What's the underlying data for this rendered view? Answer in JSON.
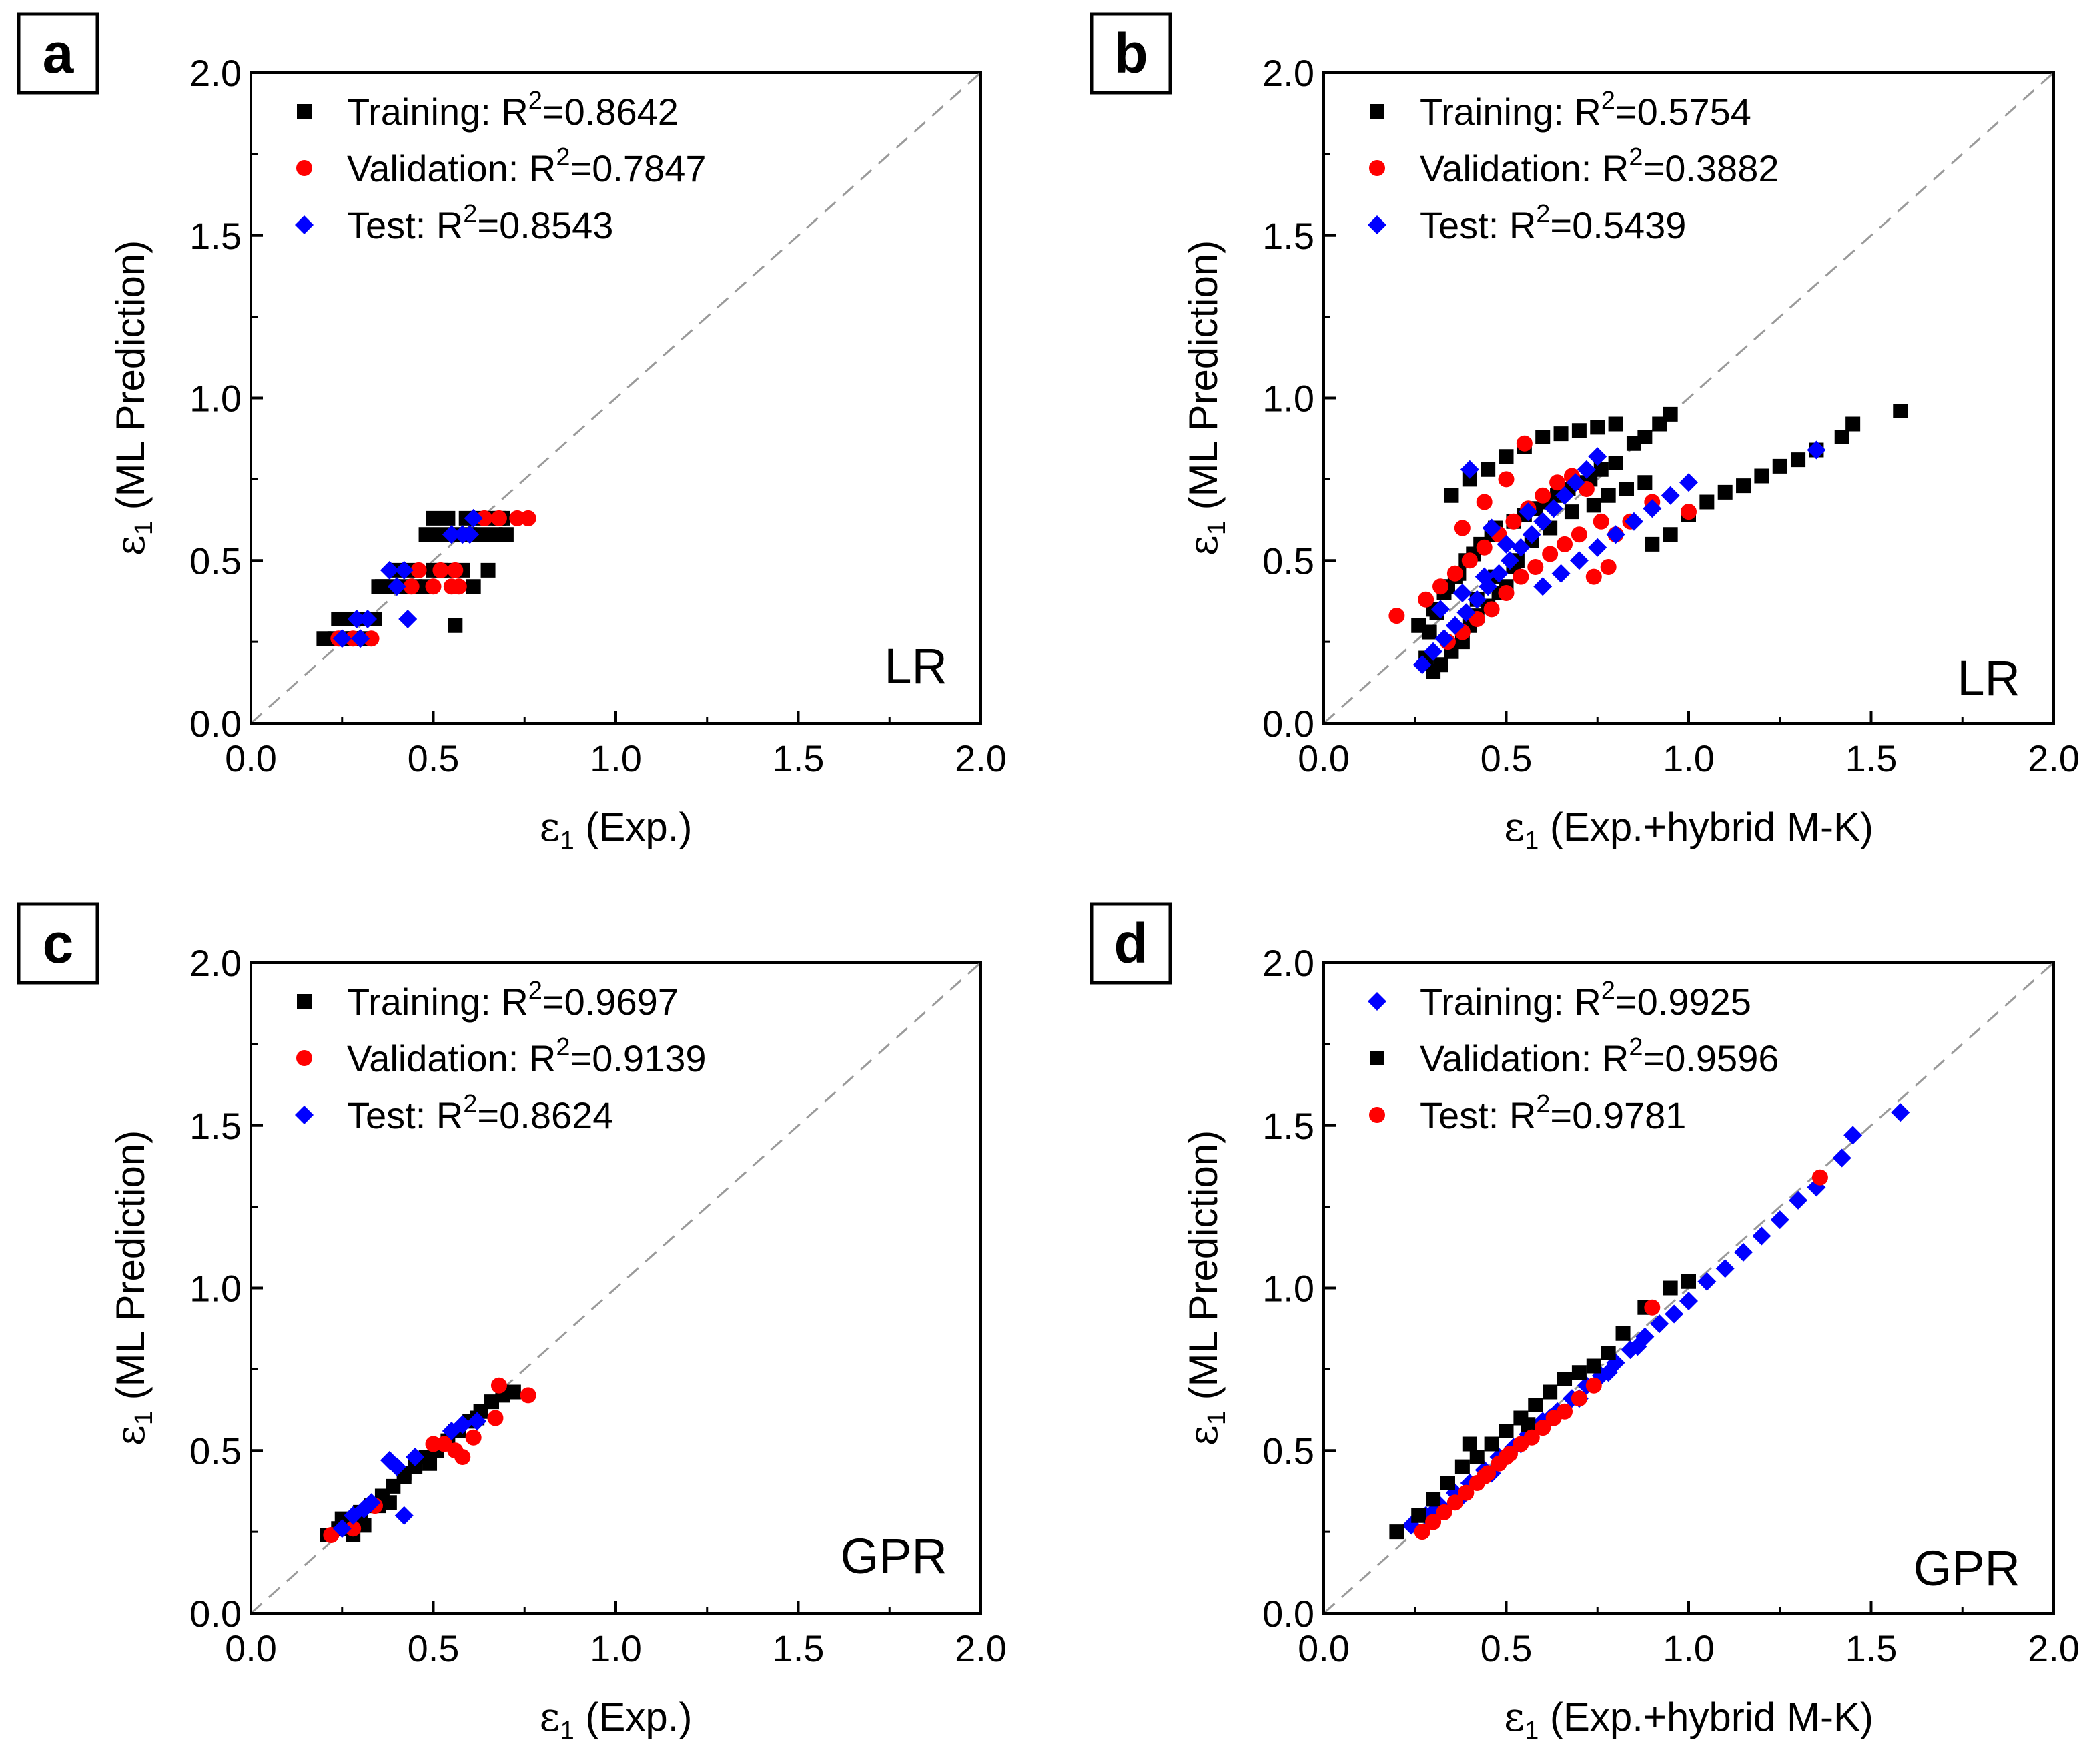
{
  "figure": {
    "panels": [
      {
        "letter": "a",
        "model": "LR",
        "xlabel_symbol": "ε",
        "xlabel_sub": "1",
        "xlabel_rest": " (Exp.)",
        "ylabel_symbol": "ε",
        "ylabel_sub": "1",
        "ylabel_rest": " (ML Prediction)",
        "legend": [
          {
            "label": "Training: R",
            "sup": "2",
            "value": "=0.8642",
            "marker": "square",
            "color": "#000000"
          },
          {
            "label": "Validation: R",
            "sup": "2",
            "value": "=0.7847",
            "marker": "circle",
            "color": "#ff0000"
          },
          {
            "label": "Test: R",
            "sup": "2",
            "value": "=0.8543",
            "marker": "diamond",
            "color": "#0000ff"
          }
        ]
      },
      {
        "letter": "b",
        "model": "LR",
        "xlabel_symbol": "ε",
        "xlabel_sub": "1",
        "xlabel_rest": " (Exp.+hybrid M-K)",
        "ylabel_symbol": "ε",
        "ylabel_sub": "1",
        "ylabel_rest": " (ML Prediction)",
        "legend": [
          {
            "label": "Training: R",
            "sup": "2",
            "value": "=0.5754",
            "marker": "square",
            "color": "#000000"
          },
          {
            "label": "Validation: R",
            "sup": "2",
            "value": "=0.3882",
            "marker": "circle",
            "color": "#ff0000"
          },
          {
            "label": "Test: R",
            "sup": "2",
            "value": "=0.5439",
            "marker": "diamond",
            "color": "#0000ff"
          }
        ]
      },
      {
        "letter": "c",
        "model": "GPR",
        "xlabel_symbol": "ε",
        "xlabel_sub": "1",
        "xlabel_rest": " (Exp.)",
        "ylabel_symbol": "ε",
        "ylabel_sub": "1",
        "ylabel_rest": " (ML Prediction)",
        "legend": [
          {
            "label": "Training: R",
            "sup": "2",
            "value": "=0.9697",
            "marker": "square",
            "color": "#000000"
          },
          {
            "label": "Validation: R",
            "sup": "2",
            "value": "=0.9139",
            "marker": "circle",
            "color": "#ff0000"
          },
          {
            "label": "Test: R",
            "sup": "2",
            "value": "=0.8624",
            "marker": "diamond",
            "color": "#0000ff"
          }
        ]
      },
      {
        "letter": "d",
        "model": "GPR",
        "xlabel_symbol": "ε",
        "xlabel_sub": "1",
        "xlabel_rest": " (Exp.+hybrid M-K)",
        "ylabel_symbol": "ε",
        "ylabel_sub": "1",
        "ylabel_rest": " (ML Prediction)",
        "legend": [
          {
            "label": "Training: R",
            "sup": "2",
            "value": "=0.9925",
            "marker": "diamond",
            "color": "#0000ff"
          },
          {
            "label": "Validation: R",
            "sup": "2",
            "value": "=0.9596",
            "marker": "square",
            "color": "#000000"
          },
          {
            "label": "Test: R",
            "sup": "2",
            "value": "=0.9781",
            "marker": "circle",
            "color": "#ff0000"
          }
        ]
      }
    ]
  },
  "chart_data": [
    {
      "panel": "a",
      "type": "scatter",
      "xlim": [
        0,
        2
      ],
      "ylim": [
        0,
        2
      ],
      "xticks": [
        "0.0",
        "0.5",
        "1.0",
        "1.5",
        "2.0"
      ],
      "yticks": [
        "0.0",
        "0.5",
        "1.0",
        "1.5",
        "2.0"
      ],
      "diagonal": true,
      "series": [
        {
          "name": "Training",
          "marker": "square",
          "color": "#000000",
          "x": [
            0.2,
            0.23,
            0.26,
            0.28,
            0.31,
            0.24,
            0.27,
            0.3,
            0.34,
            0.36,
            0.39,
            0.42,
            0.45,
            0.48,
            0.35,
            0.4,
            0.44,
            0.5,
            0.52,
            0.55,
            0.58,
            0.48,
            0.52,
            0.56,
            0.6,
            0.63,
            0.67,
            0.7,
            0.5,
            0.54,
            0.59,
            0.62,
            0.66,
            0.69,
            0.56,
            0.61,
            0.65,
            0.68
          ],
          "y": [
            0.26,
            0.26,
            0.26,
            0.26,
            0.26,
            0.32,
            0.32,
            0.32,
            0.32,
            0.42,
            0.42,
            0.42,
            0.42,
            0.42,
            0.42,
            0.47,
            0.47,
            0.47,
            0.47,
            0.47,
            0.47,
            0.58,
            0.58,
            0.58,
            0.58,
            0.58,
            0.58,
            0.58,
            0.63,
            0.63,
            0.63,
            0.63,
            0.63,
            0.63,
            0.3,
            0.42,
            0.47,
            0.63
          ]
        },
        {
          "name": "Validation",
          "marker": "circle",
          "color": "#ff0000",
          "x": [
            0.24,
            0.28,
            0.33,
            0.44,
            0.5,
            0.55,
            0.57,
            0.52,
            0.56,
            0.64,
            0.68,
            0.73,
            0.76,
            0.46
          ],
          "y": [
            0.26,
            0.26,
            0.26,
            0.42,
            0.42,
            0.42,
            0.42,
            0.47,
            0.47,
            0.63,
            0.63,
            0.63,
            0.63,
            0.47
          ]
        },
        {
          "name": "Test",
          "marker": "diamond",
          "color": "#0000ff",
          "x": [
            0.25,
            0.3,
            0.32,
            0.29,
            0.38,
            0.42,
            0.4,
            0.43,
            0.55,
            0.58,
            0.61,
            0.6
          ],
          "y": [
            0.26,
            0.26,
            0.32,
            0.32,
            0.47,
            0.47,
            0.42,
            0.32,
            0.58,
            0.58,
            0.63,
            0.58
          ]
        }
      ]
    },
    {
      "panel": "b",
      "type": "scatter",
      "xlim": [
        0,
        2
      ],
      "ylim": [
        0,
        2
      ],
      "xticks": [
        "0.0",
        "0.5",
        "1.0",
        "1.5",
        "2.0"
      ],
      "yticks": [
        "0.0",
        "0.5",
        "1.0",
        "1.5",
        "2.0"
      ],
      "diagonal": true,
      "series": [
        {
          "name": "Training",
          "marker": "square",
          "color": "#000000",
          "x": [
            0.28,
            0.3,
            0.32,
            0.35,
            0.38,
            0.4,
            0.42,
            0.45,
            0.48,
            0.5,
            0.3,
            0.33,
            0.36,
            0.39,
            0.43,
            0.47,
            0.52,
            0.55,
            0.58,
            0.61,
            0.64,
            0.67,
            0.7,
            0.73,
            0.76,
            0.8,
            0.35,
            0.4,
            0.45,
            0.5,
            0.55,
            0.6,
            0.65,
            0.7,
            0.75,
            0.8,
            0.85,
            0.88,
            0.92,
            0.95,
            0.9,
            0.95,
            1.0,
            1.05,
            1.1,
            1.15,
            1.2,
            1.25,
            1.3,
            1.35,
            1.42,
            1.45,
            1.58,
            0.26,
            0.29,
            0.31,
            0.34,
            0.37,
            0.41,
            0.46,
            0.53,
            0.57,
            0.62,
            0.68,
            0.74,
            0.78,
            0.83,
            0.88,
            0.42,
            0.47,
            0.52
          ],
          "y": [
            0.2,
            0.16,
            0.18,
            0.22,
            0.25,
            0.3,
            0.33,
            0.36,
            0.4,
            0.42,
            0.35,
            0.4,
            0.45,
            0.5,
            0.55,
            0.6,
            0.62,
            0.64,
            0.66,
            0.68,
            0.7,
            0.72,
            0.74,
            0.75,
            0.78,
            0.8,
            0.7,
            0.75,
            0.78,
            0.82,
            0.85,
            0.88,
            0.89,
            0.9,
            0.91,
            0.92,
            0.86,
            0.88,
            0.92,
            0.95,
            0.55,
            0.58,
            0.64,
            0.68,
            0.71,
            0.73,
            0.76,
            0.79,
            0.81,
            0.84,
            0.88,
            0.92,
            0.96,
            0.3,
            0.28,
            0.34,
            0.42,
            0.46,
            0.52,
            0.58,
            0.5,
            0.56,
            0.6,
            0.65,
            0.67,
            0.7,
            0.72,
            0.74,
            0.38,
            0.45,
            0.48
          ]
        },
        {
          "name": "Validation",
          "marker": "circle",
          "color": "#ff0000",
          "x": [
            0.2,
            0.28,
            0.32,
            0.36,
            0.4,
            0.44,
            0.48,
            0.52,
            0.56,
            0.6,
            0.64,
            0.68,
            0.72,
            0.76,
            0.8,
            0.84,
            0.9,
            1.0,
            0.34,
            0.38,
            0.42,
            0.46,
            0.5,
            0.54,
            0.58,
            0.62,
            0.66,
            0.7,
            0.74,
            0.78,
            0.38,
            0.44,
            0.5,
            0.55
          ],
          "y": [
            0.33,
            0.38,
            0.42,
            0.46,
            0.5,
            0.54,
            0.58,
            0.62,
            0.66,
            0.7,
            0.74,
            0.76,
            0.72,
            0.62,
            0.58,
            0.62,
            0.68,
            0.65,
            0.25,
            0.28,
            0.32,
            0.35,
            0.4,
            0.45,
            0.48,
            0.52,
            0.55,
            0.58,
            0.45,
            0.48,
            0.6,
            0.68,
            0.75,
            0.86
          ]
        },
        {
          "name": "Test",
          "marker": "diamond",
          "color": "#0000ff",
          "x": [
            0.27,
            0.3,
            0.33,
            0.36,
            0.39,
            0.42,
            0.45,
            0.48,
            0.51,
            0.54,
            0.57,
            0.6,
            0.63,
            0.66,
            0.69,
            0.72,
            0.75,
            0.6,
            0.65,
            0.7,
            0.75,
            0.8,
            0.85,
            0.9,
            0.95,
            1.0,
            1.35,
            0.32,
            0.38,
            0.44,
            0.5,
            0.56,
            0.4,
            0.46
          ],
          "y": [
            0.18,
            0.22,
            0.26,
            0.3,
            0.34,
            0.38,
            0.42,
            0.46,
            0.5,
            0.54,
            0.58,
            0.62,
            0.66,
            0.7,
            0.74,
            0.78,
            0.82,
            0.42,
            0.46,
            0.5,
            0.54,
            0.58,
            0.62,
            0.66,
            0.7,
            0.74,
            0.84,
            0.35,
            0.4,
            0.45,
            0.55,
            0.65,
            0.78,
            0.6
          ]
        }
      ]
    },
    {
      "panel": "c",
      "type": "scatter",
      "xlim": [
        0,
        2
      ],
      "ylim": [
        0,
        2
      ],
      "xticks": [
        "0.0",
        "0.5",
        "1.0",
        "1.5",
        "2.0"
      ],
      "yticks": [
        "0.0",
        "0.5",
        "1.0",
        "1.5",
        "2.0"
      ],
      "diagonal": true,
      "series": [
        {
          "name": "Training",
          "marker": "square",
          "color": "#000000",
          "x": [
            0.21,
            0.24,
            0.27,
            0.3,
            0.33,
            0.36,
            0.39,
            0.42,
            0.45,
            0.48,
            0.51,
            0.54,
            0.57,
            0.6,
            0.63,
            0.66,
            0.69,
            0.72,
            0.28,
            0.35,
            0.42,
            0.49,
            0.56,
            0.62,
            0.25,
            0.31,
            0.38
          ],
          "y": [
            0.24,
            0.26,
            0.28,
            0.31,
            0.33,
            0.36,
            0.39,
            0.42,
            0.45,
            0.48,
            0.5,
            0.53,
            0.56,
            0.59,
            0.62,
            0.65,
            0.67,
            0.68,
            0.24,
            0.33,
            0.43,
            0.46,
            0.56,
            0.6,
            0.29,
            0.27,
            0.34
          ]
        },
        {
          "name": "Validation",
          "marker": "circle",
          "color": "#ff0000",
          "x": [
            0.22,
            0.28,
            0.34,
            0.5,
            0.53,
            0.56,
            0.58,
            0.61,
            0.67,
            0.68,
            0.76
          ],
          "y": [
            0.24,
            0.26,
            0.33,
            0.52,
            0.52,
            0.5,
            0.48,
            0.54,
            0.6,
            0.7,
            0.67
          ]
        },
        {
          "name": "Test",
          "marker": "diamond",
          "color": "#0000ff",
          "x": [
            0.25,
            0.28,
            0.31,
            0.33,
            0.38,
            0.4,
            0.42,
            0.45,
            0.55,
            0.58,
            0.62
          ],
          "y": [
            0.26,
            0.3,
            0.32,
            0.34,
            0.47,
            0.45,
            0.3,
            0.48,
            0.56,
            0.58,
            0.59
          ]
        }
      ]
    },
    {
      "panel": "d",
      "type": "scatter",
      "xlim": [
        0,
        2
      ],
      "ylim": [
        0,
        2
      ],
      "xticks": [
        "0.0",
        "0.5",
        "1.0",
        "1.5",
        "2.0"
      ],
      "yticks": [
        "0.0",
        "0.5",
        "1.0",
        "1.5",
        "2.0"
      ],
      "diagonal": true,
      "series": [
        {
          "name": "Training",
          "marker": "diamond",
          "color": "#0000ff",
          "x": [
            0.24,
            0.28,
            0.32,
            0.36,
            0.4,
            0.44,
            0.48,
            0.52,
            0.56,
            0.6,
            0.64,
            0.68,
            0.72,
            0.76,
            0.8,
            0.84,
            0.88,
            0.92,
            0.96,
            1.0,
            1.05,
            1.1,
            1.15,
            1.2,
            1.25,
            1.3,
            1.35,
            1.42,
            1.45,
            1.58,
            0.3,
            0.38,
            0.46,
            0.54,
            0.62,
            0.7,
            0.78,
            0.86
          ],
          "y": [
            0.27,
            0.3,
            0.33,
            0.37,
            0.4,
            0.44,
            0.48,
            0.51,
            0.55,
            0.59,
            0.62,
            0.66,
            0.7,
            0.73,
            0.77,
            0.81,
            0.85,
            0.89,
            0.92,
            0.96,
            1.02,
            1.06,
            1.11,
            1.16,
            1.21,
            1.27,
            1.31,
            1.4,
            1.47,
            1.54,
            0.31,
            0.36,
            0.43,
            0.52,
            0.6,
            0.66,
            0.74,
            0.82
          ]
        },
        {
          "name": "Validation",
          "marker": "square",
          "color": "#000000",
          "x": [
            0.2,
            0.26,
            0.3,
            0.34,
            0.38,
            0.42,
            0.46,
            0.5,
            0.54,
            0.58,
            0.62,
            0.66,
            0.7,
            0.74,
            0.78,
            0.82,
            0.88,
            0.95,
            1.0,
            0.4,
            0.56,
            0.66
          ],
          "y": [
            0.25,
            0.3,
            0.35,
            0.4,
            0.45,
            0.48,
            0.52,
            0.56,
            0.6,
            0.64,
            0.68,
            0.72,
            0.74,
            0.76,
            0.8,
            0.86,
            0.94,
            1.0,
            1.02,
            0.52,
            0.58,
            0.72
          ]
        },
        {
          "name": "Test",
          "marker": "circle",
          "color": "#ff0000",
          "x": [
            0.27,
            0.3,
            0.33,
            0.36,
            0.39,
            0.42,
            0.45,
            0.48,
            0.51,
            0.54,
            0.57,
            0.6,
            0.63,
            0.66,
            0.7,
            0.74,
            0.9,
            1.36,
            0.44,
            0.5
          ],
          "y": [
            0.25,
            0.28,
            0.31,
            0.34,
            0.37,
            0.4,
            0.43,
            0.46,
            0.49,
            0.52,
            0.54,
            0.57,
            0.6,
            0.62,
            0.66,
            0.7,
            0.94,
            1.34,
            0.42,
            0.48
          ]
        }
      ]
    }
  ]
}
